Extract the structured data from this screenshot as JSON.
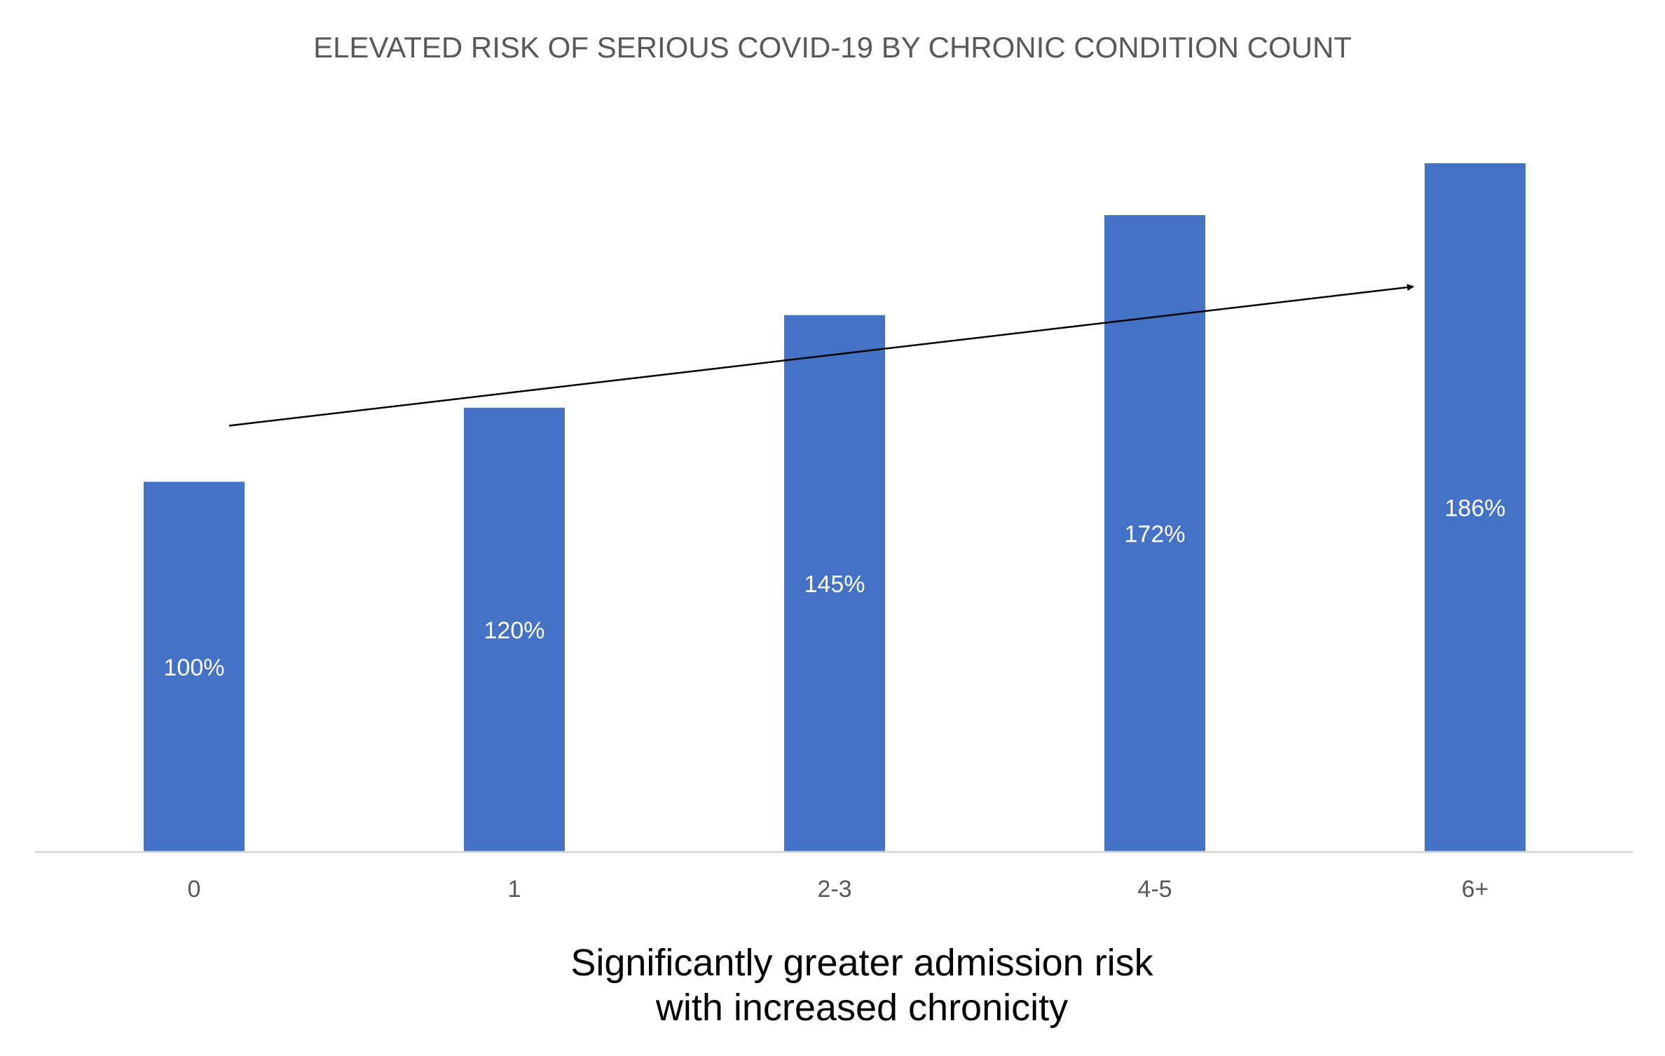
{
  "chart_data": {
    "type": "bar",
    "title": "ELEVATED RISK OF SERIOUS COVID-19 BY CHRONIC CONDITION COUNT",
    "categories": [
      "0",
      "1",
      "2-3",
      "4-5",
      "6+"
    ],
    "values": [
      100,
      120,
      145,
      172,
      186
    ],
    "data_labels": [
      "100%",
      "120%",
      "145%",
      "172%",
      "186%"
    ],
    "xlabel": "",
    "ylabel": "",
    "ylim": [
      0,
      186
    ],
    "grid": false,
    "legend": "none",
    "bar_color": "#4472C4",
    "data_label_color": "#FFFFFF",
    "annotation": {
      "type": "trend-arrow",
      "from_category": "0",
      "to_category": "6+",
      "color": "#000000"
    },
    "caption_lines": [
      "Significantly greater admission risk",
      "with increased chronicity"
    ]
  }
}
